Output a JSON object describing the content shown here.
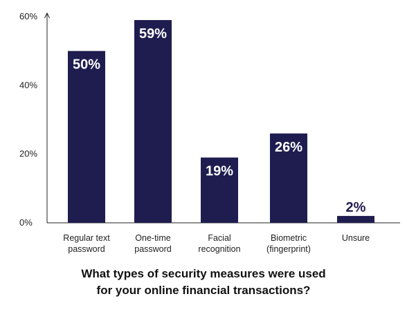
{
  "chart_data": {
    "type": "bar",
    "categories": [
      [
        "Regular text",
        "password"
      ],
      [
        "One-time",
        "password"
      ],
      [
        "Facial",
        "recognition"
      ],
      [
        "Biometric",
        "(fingerprint)"
      ],
      [
        "Unsure"
      ]
    ],
    "values": [
      50,
      59,
      19,
      26,
      2
    ],
    "value_labels": [
      "50%",
      "59%",
      "19%",
      "26%",
      "2%"
    ],
    "title": [
      "What types of security measures were used",
      "for your online financial transactions?"
    ],
    "xlabel": "",
    "ylabel": "",
    "ylim": [
      0,
      60
    ],
    "yticks": [
      0,
      20,
      40,
      60
    ],
    "ytick_labels": [
      "0%",
      "20%",
      "40%",
      "60%"
    ],
    "grid": false,
    "bar_color": "#1f1d4f",
    "label_color_inside": "#ffffff",
    "label_color_outside": "#1f1d4f"
  }
}
